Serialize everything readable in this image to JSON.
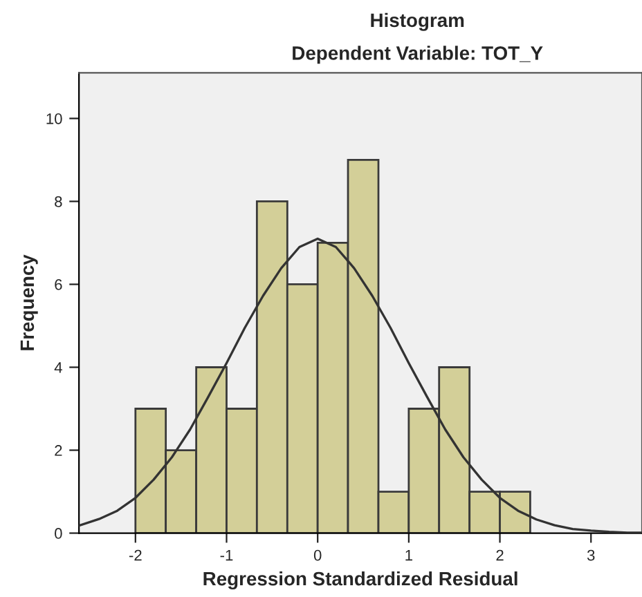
{
  "chart_data": {
    "type": "histogram",
    "title": "Histogram",
    "subtitle": "Dependent Variable: TOT_Y",
    "xlabel": "Regression Standardized Residual",
    "ylabel": "Frequency",
    "bins": [
      -2,
      -1.667,
      -1.333,
      -1,
      -0.667,
      -0.333,
      0,
      0.333,
      0.667,
      1,
      1.333,
      1.667,
      2,
      2.333
    ],
    "series": [
      {
        "color": "#d3cf98",
        "values": [
          3,
          2,
          4,
          3,
          8,
          6,
          7,
          9,
          1,
          3,
          4,
          1,
          1
        ]
      },
      {
        "type": "line",
        "color": "#333333",
        "x": [
          -2.62,
          -2.4,
          -2.2,
          -2,
          -1.8,
          -1.6,
          -1.4,
          -1.2,
          -1,
          -0.8,
          -0.6,
          -0.4,
          -0.2,
          0,
          0.2,
          0.4,
          0.6,
          0.8,
          1,
          1.2,
          1.4,
          1.6,
          1.8,
          2,
          2.2,
          2.4,
          2.6,
          2.8,
          3,
          3.2,
          3.4,
          3.56
        ],
        "values": [
          0.18,
          0.34,
          0.54,
          0.85,
          1.29,
          1.83,
          2.5,
          3.29,
          4.1,
          4.95,
          5.72,
          6.39,
          6.9,
          7.1,
          6.9,
          6.39,
          5.72,
          4.95,
          4.1,
          3.29,
          2.5,
          1.83,
          1.29,
          0.85,
          0.54,
          0.33,
          0.19,
          0.1,
          0.06,
          0.03,
          0.01,
          0.01
        ]
      }
    ],
    "xlim": [
      -2.62,
      3.56
    ],
    "ylim": [
      0,
      11.1
    ],
    "xticks": [
      -2,
      -1,
      0,
      1,
      2,
      3
    ],
    "yticks": [
      0,
      2,
      4,
      6,
      8,
      10
    ],
    "grid": false
  }
}
